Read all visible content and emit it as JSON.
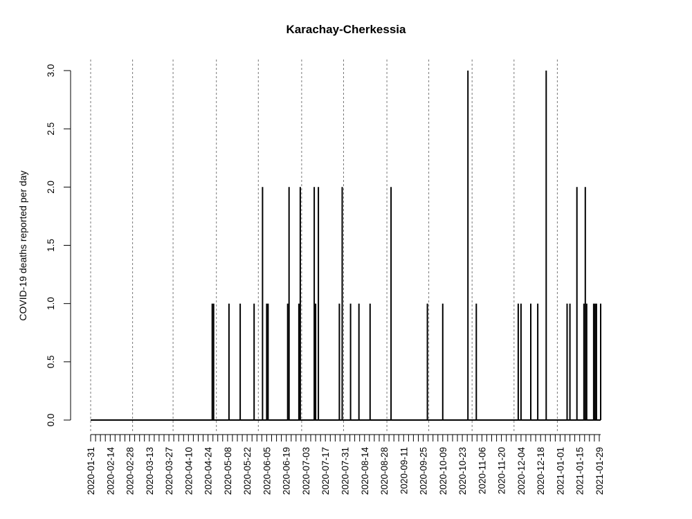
{
  "chart_data": {
    "type": "bar",
    "title": "Karachay-Cherkessia",
    "ylabel": "COVID-19 deaths reported per day",
    "xlabel": "",
    "x_range": [
      "2020-01-31",
      "2021-01-30"
    ],
    "ylim": [
      0,
      3
    ],
    "y_ticks": [
      0,
      0.5,
      1,
      1.5,
      2,
      2.5,
      3
    ],
    "y_tick_labels": [
      "0.0",
      "0.5",
      "1.0",
      "1.5",
      "2.0",
      "2.5",
      "3.0"
    ],
    "x_tick_labels": [
      "2020-01-31",
      "2020-02-14",
      "2020-02-28",
      "2020-03-13",
      "2020-03-27",
      "2020-04-10",
      "2020-04-24",
      "2020-05-08",
      "2020-05-22",
      "2020-06-05",
      "2020-06-19",
      "2020-07-03",
      "2020-07-17",
      "2020-07-31",
      "2020-08-14",
      "2020-08-28",
      "2020-09-11",
      "2020-09-25",
      "2020-10-09",
      "2020-10-23",
      "2020-11-06",
      "2020-11-20",
      "2020-12-04",
      "2020-12-18",
      "2021-01-01",
      "2021-01-15",
      "2021-01-29"
    ],
    "month_gridlines": [
      "2020-01-31",
      "2020-03-01",
      "2020-03-30",
      "2020-04-30",
      "2020-05-30",
      "2020-06-30",
      "2020-07-30",
      "2020-08-30",
      "2020-09-29",
      "2020-10-30",
      "2020-11-29",
      "2020-12-30"
    ],
    "grid": "dotted vertical lines at month boundaries",
    "points": [
      {
        "date": "2020-04-27",
        "value": 1
      },
      {
        "date": "2020-04-28",
        "value": 1
      },
      {
        "date": "2020-05-09",
        "value": 1
      },
      {
        "date": "2020-05-17",
        "value": 1
      },
      {
        "date": "2020-05-27",
        "value": 1
      },
      {
        "date": "2020-06-02",
        "value": 2
      },
      {
        "date": "2020-06-05",
        "value": 1
      },
      {
        "date": "2020-06-06",
        "value": 1
      },
      {
        "date": "2020-06-20",
        "value": 1
      },
      {
        "date": "2020-06-21",
        "value": 2
      },
      {
        "date": "2020-06-28",
        "value": 1
      },
      {
        "date": "2020-06-29",
        "value": 2
      },
      {
        "date": "2020-07-09",
        "value": 2
      },
      {
        "date": "2020-07-10",
        "value": 1
      },
      {
        "date": "2020-07-12",
        "value": 2
      },
      {
        "date": "2020-07-27",
        "value": 1
      },
      {
        "date": "2020-07-29",
        "value": 2
      },
      {
        "date": "2020-08-04",
        "value": 1
      },
      {
        "date": "2020-08-10",
        "value": 1
      },
      {
        "date": "2020-08-18",
        "value": 1
      },
      {
        "date": "2020-09-02",
        "value": 2
      },
      {
        "date": "2020-09-28",
        "value": 1
      },
      {
        "date": "2020-10-09",
        "value": 1
      },
      {
        "date": "2020-10-27",
        "value": 3
      },
      {
        "date": "2020-11-02",
        "value": 1
      },
      {
        "date": "2020-12-02",
        "value": 1
      },
      {
        "date": "2020-12-04",
        "value": 1
      },
      {
        "date": "2020-12-11",
        "value": 1
      },
      {
        "date": "2020-12-16",
        "value": 1
      },
      {
        "date": "2020-12-22",
        "value": 3
      },
      {
        "date": "2021-01-06",
        "value": 1
      },
      {
        "date": "2021-01-08",
        "value": 1
      },
      {
        "date": "2021-01-13",
        "value": 2
      },
      {
        "date": "2021-01-18",
        "value": 1
      },
      {
        "date": "2021-01-19",
        "value": 2
      },
      {
        "date": "2021-01-20",
        "value": 1
      },
      {
        "date": "2021-01-25",
        "value": 1
      },
      {
        "date": "2021-01-26",
        "value": 1
      },
      {
        "date": "2021-01-27",
        "value": 1
      },
      {
        "date": "2021-01-30",
        "value": 1
      }
    ],
    "bar_color": "#000000",
    "grid_color": "#777777"
  }
}
